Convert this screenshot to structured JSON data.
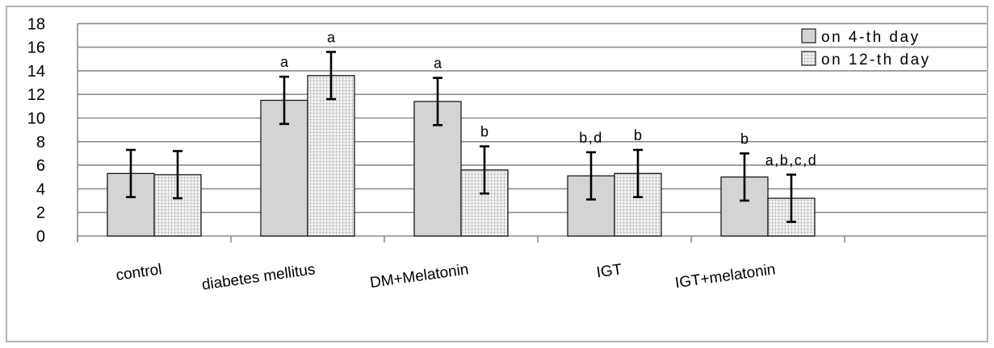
{
  "chart_data": {
    "type": "bar",
    "categories": [
      "control",
      "diabetes mellitus",
      "DM+Melatonin",
      "IGT",
      "IGT+melatonin"
    ],
    "series": [
      {
        "name": "on 4-th day",
        "values": [
          5.3,
          11.5,
          11.4,
          5.1,
          5.0
        ],
        "errors": [
          2.0,
          2.0,
          2.0,
          2.0,
          2.0
        ],
        "annotations": [
          "",
          "a",
          "a",
          "b,d",
          "b"
        ],
        "color": "#d4d4d4",
        "pattern": "solid"
      },
      {
        "name": "on 12-th day",
        "values": [
          5.2,
          13.6,
          5.6,
          5.3,
          3.2
        ],
        "errors": [
          2.0,
          2.0,
          2.0,
          2.0,
          2.0
        ],
        "annotations": [
          "",
          "a",
          "b",
          "b",
          "a,b,c,d"
        ],
        "color": "#f2f2f2",
        "pattern": "grid"
      }
    ],
    "y_ticks": [
      "0",
      "2",
      "4",
      "6",
      "8",
      "10",
      "12",
      "14",
      "16",
      "18"
    ],
    "ylim": [
      0,
      18
    ],
    "grid": true,
    "legend": "top-right",
    "title": "",
    "xlabel": "",
    "ylabel": ""
  }
}
